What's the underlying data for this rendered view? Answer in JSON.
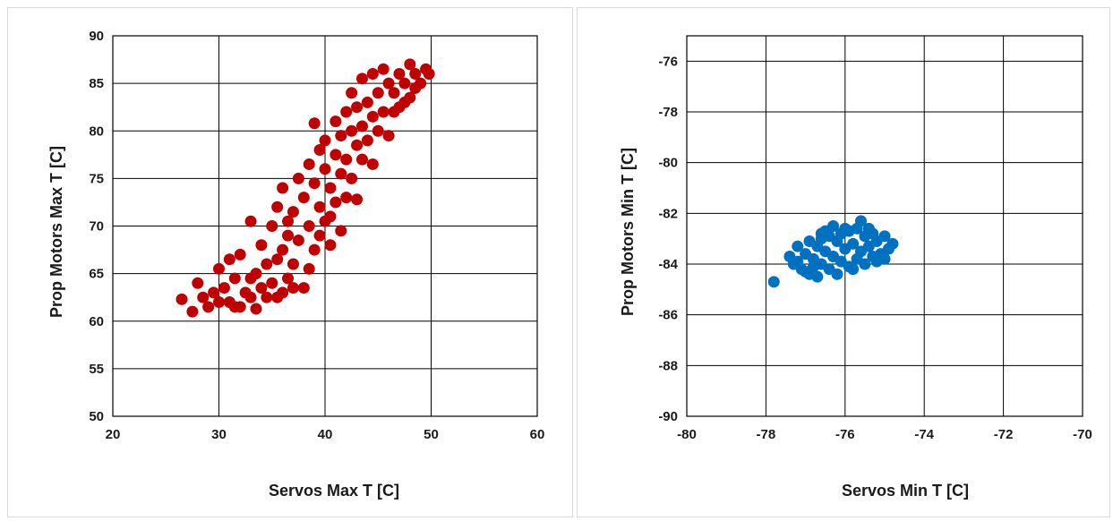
{
  "charts": [
    {
      "xlabel": "Servos Max T [C]",
      "ylabel": "Prop Motors Max T [C]"
    },
    {
      "xlabel": "Servos Min T [C]",
      "ylabel": "Prop Motors Min T [C]"
    }
  ],
  "chart_data": [
    {
      "type": "scatter",
      "title": "",
      "xlabel": "Servos Max T [C]",
      "ylabel": "Prop Motors Max T [C]",
      "xlim": [
        20,
        60
      ],
      "ylim": [
        50,
        90
      ],
      "xticks": [
        20,
        30,
        40,
        50,
        60
      ],
      "yticks": [
        50,
        55,
        60,
        65,
        70,
        75,
        80,
        85,
        90
      ],
      "grid": true,
      "legend": "none",
      "color": "#c00000",
      "points": [
        [
          26.5,
          62.3
        ],
        [
          27.5,
          61.0
        ],
        [
          28.0,
          64.0
        ],
        [
          28.5,
          62.5
        ],
        [
          29.0,
          61.5
        ],
        [
          29.5,
          63.0
        ],
        [
          30.0,
          62.0
        ],
        [
          30.0,
          65.5
        ],
        [
          30.5,
          63.5
        ],
        [
          31.0,
          66.5
        ],
        [
          31.0,
          62.0
        ],
        [
          31.5,
          64.5
        ],
        [
          32.0,
          61.5
        ],
        [
          32.0,
          67.0
        ],
        [
          32.5,
          63.0
        ],
        [
          33.0,
          70.5
        ],
        [
          33.0,
          62.5
        ],
        [
          33.5,
          65.0
        ],
        [
          33.5,
          61.3
        ],
        [
          34.0,
          68.0
        ],
        [
          34.0,
          63.5
        ],
        [
          34.5,
          66.0
        ],
        [
          35.0,
          70.0
        ],
        [
          35.0,
          64.0
        ],
        [
          35.5,
          72.0
        ],
        [
          35.5,
          62.5
        ],
        [
          36.0,
          67.5
        ],
        [
          36.0,
          74.0
        ],
        [
          36.5,
          69.0
        ],
        [
          36.5,
          64.5
        ],
        [
          37.0,
          71.5
        ],
        [
          37.0,
          66.0
        ],
        [
          37.5,
          75.0
        ],
        [
          37.5,
          68.5
        ],
        [
          38.0,
          73.0
        ],
        [
          38.0,
          63.5
        ],
        [
          38.5,
          76.5
        ],
        [
          38.5,
          70.0
        ],
        [
          39.0,
          74.5
        ],
        [
          39.0,
          80.8
        ],
        [
          39.0,
          67.5
        ],
        [
          39.5,
          78.0
        ],
        [
          39.5,
          72.0
        ],
        [
          40.0,
          76.0
        ],
        [
          40.0,
          70.5
        ],
        [
          40.0,
          79.0
        ],
        [
          40.5,
          74.0
        ],
        [
          40.5,
          68.0
        ],
        [
          41.0,
          77.5
        ],
        [
          41.0,
          81.0
        ],
        [
          41.0,
          72.5
        ],
        [
          41.5,
          79.5
        ],
        [
          41.5,
          75.5
        ],
        [
          41.5,
          69.5
        ],
        [
          42.0,
          82.0
        ],
        [
          42.0,
          77.0
        ],
        [
          42.0,
          73.0
        ],
        [
          42.5,
          80.0
        ],
        [
          42.5,
          84.0
        ],
        [
          42.5,
          75.0
        ],
        [
          43.0,
          78.5
        ],
        [
          43.0,
          82.5
        ],
        [
          43.0,
          72.8
        ],
        [
          43.5,
          85.5
        ],
        [
          43.5,
          80.5
        ],
        [
          43.5,
          77.0
        ],
        [
          44.0,
          83.0
        ],
        [
          44.0,
          79.0
        ],
        [
          44.5,
          86.0
        ],
        [
          44.5,
          81.5
        ],
        [
          44.5,
          76.5
        ],
        [
          45.0,
          84.0
        ],
        [
          45.0,
          80.0
        ],
        [
          45.5,
          86.5
        ],
        [
          45.5,
          82.0
        ],
        [
          46.0,
          85.0
        ],
        [
          46.0,
          79.5
        ],
        [
          46.5,
          84.0
        ],
        [
          47.0,
          86.0
        ],
        [
          47.0,
          82.5
        ],
        [
          47.5,
          85.0
        ],
        [
          48.0,
          87.0
        ],
        [
          48.0,
          83.5
        ],
        [
          48.5,
          86.0
        ],
        [
          49.0,
          85.0
        ],
        [
          49.5,
          86.5
        ],
        [
          49.8,
          86.0
        ],
        [
          48.5,
          84.5
        ],
        [
          47.5,
          83.0
        ],
        [
          46.5,
          82.0
        ],
        [
          34.5,
          62.5
        ],
        [
          36.0,
          63.0
        ],
        [
          37.0,
          63.5
        ],
        [
          38.5,
          65.5
        ],
        [
          39.5,
          69.0
        ],
        [
          40.5,
          71.0
        ],
        [
          36.5,
          70.5
        ],
        [
          35.5,
          66.5
        ],
        [
          33.0,
          64.5
        ],
        [
          31.5,
          61.5
        ]
      ]
    },
    {
      "type": "scatter",
      "title": "",
      "xlabel": "Servos Min T [C]",
      "ylabel": "Prop Motors Min T [C]",
      "xlim": [
        -80,
        -70
      ],
      "ylim": [
        -90,
        -75
      ],
      "xticks": [
        -80,
        -78,
        -76,
        -74,
        -72,
        -70
      ],
      "yticks": [
        -90,
        -88,
        -86,
        -84,
        -82,
        -80,
        -78,
        -76
      ],
      "grid": true,
      "legend": "none",
      "color": "#0070c0",
      "points": [
        [
          -77.8,
          -84.7
        ],
        [
          -77.4,
          -83.7
        ],
        [
          -77.3,
          -84.0
        ],
        [
          -77.2,
          -83.3
        ],
        [
          -77.1,
          -84.2
        ],
        [
          -77.0,
          -83.6
        ],
        [
          -76.9,
          -83.1
        ],
        [
          -76.9,
          -84.4
        ],
        [
          -76.8,
          -83.8
        ],
        [
          -76.7,
          -83.3
        ],
        [
          -76.7,
          -84.5
        ],
        [
          -76.6,
          -83.0
        ],
        [
          -76.6,
          -84.0
        ],
        [
          -76.5,
          -83.5
        ],
        [
          -76.4,
          -82.9
        ],
        [
          -76.4,
          -84.2
        ],
        [
          -76.3,
          -83.7
        ],
        [
          -76.2,
          -83.1
        ],
        [
          -76.2,
          -84.4
        ],
        [
          -76.1,
          -82.8
        ],
        [
          -76.1,
          -83.9
        ],
        [
          -76.0,
          -83.4
        ],
        [
          -75.9,
          -82.7
        ],
        [
          -75.9,
          -84.1
        ],
        [
          -75.8,
          -83.2
        ],
        [
          -75.7,
          -82.6
        ],
        [
          -75.7,
          -83.8
        ],
        [
          -75.6,
          -82.3
        ],
        [
          -75.6,
          -83.5
        ],
        [
          -75.5,
          -82.9
        ],
        [
          -75.5,
          -84.0
        ],
        [
          -75.4,
          -83.3
        ],
        [
          -75.3,
          -82.8
        ],
        [
          -75.3,
          -83.7
        ],
        [
          -75.2,
          -83.1
        ],
        [
          -75.1,
          -83.6
        ],
        [
          -75.0,
          -82.9
        ],
        [
          -74.9,
          -83.4
        ],
        [
          -74.8,
          -83.2
        ],
        [
          -75.0,
          -83.8
        ],
        [
          -76.5,
          -82.7
        ],
        [
          -76.8,
          -84.1
        ],
        [
          -77.0,
          -84.3
        ],
        [
          -75.8,
          -84.2
        ],
        [
          -76.3,
          -82.5
        ],
        [
          -75.4,
          -82.6
        ],
        [
          -76.0,
          -82.6
        ],
        [
          -77.2,
          -83.9
        ],
        [
          -75.2,
          -83.9
        ],
        [
          -76.6,
          -82.8
        ]
      ]
    }
  ]
}
